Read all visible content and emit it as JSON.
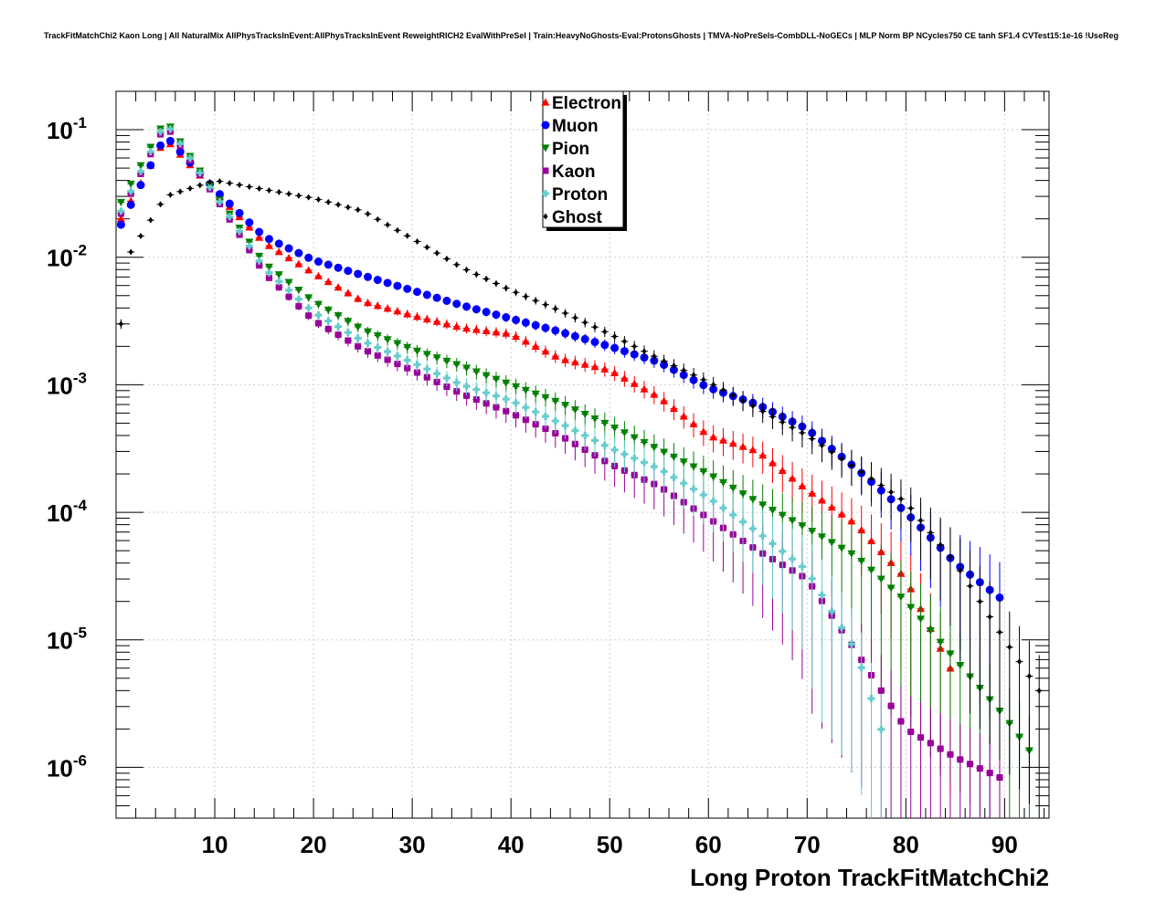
{
  "chart_data": {
    "type": "scatter",
    "title": "TrackFitMatchChi2 Kaon Long | All NaturalMix AllPhysTracksInEvent:AllPhysTracksInEvent ReweightRICH2 EvalWithPreSel | Train:HeavyNoGhosts-Eval:ProtonsGhosts | TMVA-NoPreSels-CombDLL-NoGECs | MLP Norm BP NCycles750 CE tanh SF1.4 CVTest15:1e-16 !UseReg",
    "xlabel": "Long Proton TrackFitMatchChi2",
    "ylabel": "",
    "xlim": [
      0,
      94.5
    ],
    "ylim": [
      4e-07,
      0.2
    ],
    "yscale": "log",
    "grid": true,
    "legend_position": "top-center",
    "x_ticks": [
      10,
      20,
      30,
      40,
      50,
      60,
      70,
      80,
      90
    ],
    "y_ticks": [
      {
        "value": 1e-06,
        "base": "10",
        "exp": "-6"
      },
      {
        "value": 1e-05,
        "base": "10",
        "exp": "-5"
      },
      {
        "value": 0.0001,
        "base": "10",
        "exp": "-4"
      },
      {
        "value": 0.001,
        "base": "10",
        "exp": "-3"
      },
      {
        "value": 0.01,
        "base": "10",
        "exp": "-2"
      },
      {
        "value": 0.1,
        "base": "10",
        "exp": "-1"
      }
    ],
    "series": [
      {
        "name": "Electron",
        "color": "#ff0000",
        "marker": "triangle-up",
        "x": [
          0.5,
          5,
          10,
          15,
          20,
          25,
          30,
          35,
          40,
          45,
          50,
          55,
          60,
          65,
          70,
          75,
          80,
          85
        ],
        "y": [
          0.02,
          0.085,
          0.033,
          0.013,
          0.0075,
          0.0045,
          0.0035,
          0.0028,
          0.0025,
          0.0016,
          0.0013,
          0.0008,
          0.0004,
          0.0003,
          0.00015,
          8e-05,
          3e-05,
          5e-06
        ]
      },
      {
        "name": "Muon",
        "color": "#0000ff",
        "marker": "circle",
        "x": [
          0.5,
          5,
          10,
          15,
          20,
          25,
          30,
          35,
          40,
          45,
          50,
          55,
          60,
          65,
          70,
          75,
          80,
          85,
          90
        ],
        "y": [
          0.018,
          0.09,
          0.034,
          0.0145,
          0.0095,
          0.0072,
          0.0055,
          0.0042,
          0.0033,
          0.0026,
          0.002,
          0.0015,
          0.00095,
          0.0007,
          0.00045,
          0.00022,
          0.0001,
          4e-05,
          2e-05
        ]
      },
      {
        "name": "Pion",
        "color": "#008000",
        "marker": "triangle-down",
        "x": [
          0.5,
          5,
          10,
          15,
          20,
          25,
          30,
          35,
          40,
          45,
          50,
          55,
          60,
          65,
          70,
          75,
          80,
          85,
          90,
          93
        ],
        "y": [
          0.027,
          0.12,
          0.032,
          0.009,
          0.0045,
          0.0027,
          0.0019,
          0.0014,
          0.001,
          0.00072,
          0.00048,
          0.00031,
          0.0002,
          0.00012,
          7.5e-05,
          4.5e-05,
          2e-05,
          7e-06,
          2.5e-06,
          1.2e-06
        ]
      },
      {
        "name": "Kaon",
        "color": "#990099",
        "marker": "square",
        "x": [
          0.5,
          5,
          10,
          15,
          20,
          25,
          30,
          35,
          40,
          45,
          50,
          55,
          60,
          65,
          70,
          75,
          80,
          85,
          90
        ],
        "y": [
          0.022,
          0.11,
          0.03,
          0.0075,
          0.0032,
          0.0019,
          0.0013,
          0.00085,
          0.0006,
          0.0004,
          0.00024,
          0.00016,
          9e-05,
          5e-05,
          3e-05,
          8e-06,
          2e-06,
          1.2e-06,
          8e-07
        ]
      },
      {
        "name": "Proton",
        "color": "#66cccc",
        "marker": "cross",
        "x": [
          0.5,
          5,
          10,
          15,
          20,
          25,
          30,
          35,
          40,
          45,
          50,
          55,
          60,
          65,
          70,
          75,
          78
        ],
        "y": [
          0.023,
          0.115,
          0.031,
          0.0082,
          0.0037,
          0.0022,
          0.0015,
          0.001,
          0.00075,
          0.0005,
          0.00032,
          0.00022,
          0.00013,
          7e-05,
          3.5e-05,
          8e-06,
          1.5e-06
        ]
      },
      {
        "name": "Ghost",
        "color": "#000000",
        "marker": "diamond",
        "x": [
          0.5,
          1.5,
          5,
          10,
          15,
          20,
          25,
          30,
          35,
          40,
          45,
          50,
          55,
          60,
          65,
          70,
          75,
          80,
          85,
          90,
          94
        ],
        "y": [
          0.003,
          0.011,
          0.03,
          0.04,
          0.034,
          0.029,
          0.023,
          0.014,
          0.0083,
          0.0055,
          0.0038,
          0.0025,
          0.0016,
          0.00105,
          0.00065,
          0.0004,
          0.00022,
          0.00012,
          4e-05,
          1e-05,
          3.5e-06
        ]
      }
    ]
  }
}
